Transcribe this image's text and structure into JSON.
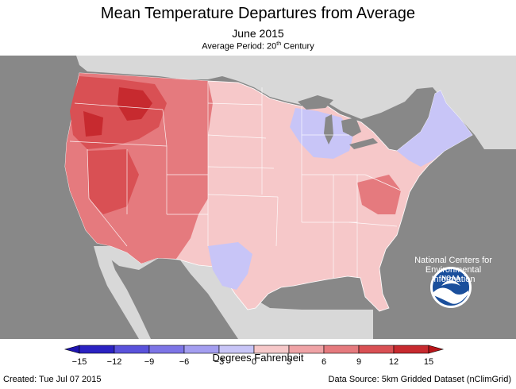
{
  "header": {
    "title": "Mean Temperature Departures from Average",
    "subtitle": "June 2015",
    "period_label": "Average Period: 20",
    "period_sup": "th",
    "period_suffix": " Century"
  },
  "map": {
    "background_color": "#888888",
    "land_color": "#d8d8d8",
    "water_color": "#888888"
  },
  "logo": {
    "name": "NOAA",
    "org_text": "National Centers for Environmental Information"
  },
  "colorbar": {
    "label": "Degrees Fahrenheit",
    "ticks": [
      "−15",
      "−12",
      "−9",
      "−6",
      "−3",
      "0",
      "3",
      "6",
      "9",
      "12",
      "15"
    ],
    "colors": [
      "#2b22c2",
      "#5a52db",
      "#7d75e6",
      "#a49ef0",
      "#c8c5f7",
      "#f6c8c9",
      "#efa3a6",
      "#e57a7e",
      "#d95054",
      "#c72a2f"
    ],
    "min_color": "#1e14b0",
    "max_color": "#b81519"
  },
  "footer": {
    "created": "Created: Tue Jul 07 2015",
    "source": "Data Source: 5km Gridded Dataset (nClimGrid)"
  }
}
